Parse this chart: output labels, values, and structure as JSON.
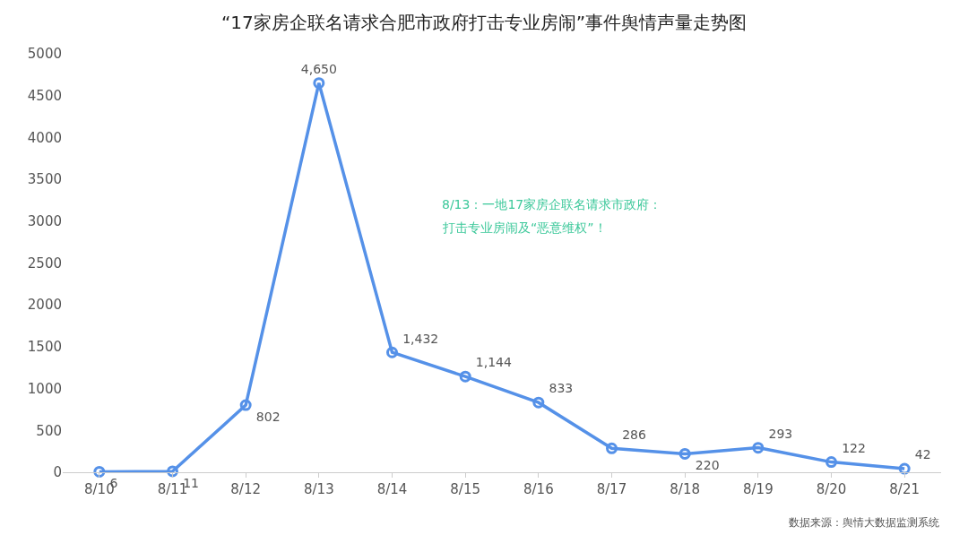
{
  "chart_data": {
    "type": "line",
    "title": "“17家房企联名请求合肥市政府打击专业房闹”事件舆情声量走势图",
    "categories": [
      "8/10",
      "8/11",
      "8/12",
      "8/13",
      "8/14",
      "8/15",
      "8/16",
      "8/17",
      "8/18",
      "8/19",
      "8/20",
      "8/21"
    ],
    "values": [
      6,
      11,
      802,
      4650,
      1432,
      1144,
      833,
      286,
      220,
      293,
      122,
      42
    ],
    "value_labels": [
      "6",
      "11",
      "802",
      "4,650",
      "1,432",
      "1,144",
      "833",
      "286",
      "220",
      "293",
      "122",
      "42"
    ],
    "color": "#5591e8",
    "marker": "circle",
    "line_style": "solid",
    "ylim": [
      0,
      5000
    ],
    "yticks": [
      0,
      500,
      1000,
      1500,
      2000,
      2500,
      3000,
      3500,
      4000,
      4500,
      5000
    ],
    "annotations": [
      "8/13：一地17家房企联名请求市政府：",
      "打击专业房闹及“恶意维权”！",
      "数据来源：舆情大数据监测系统"
    ]
  }
}
